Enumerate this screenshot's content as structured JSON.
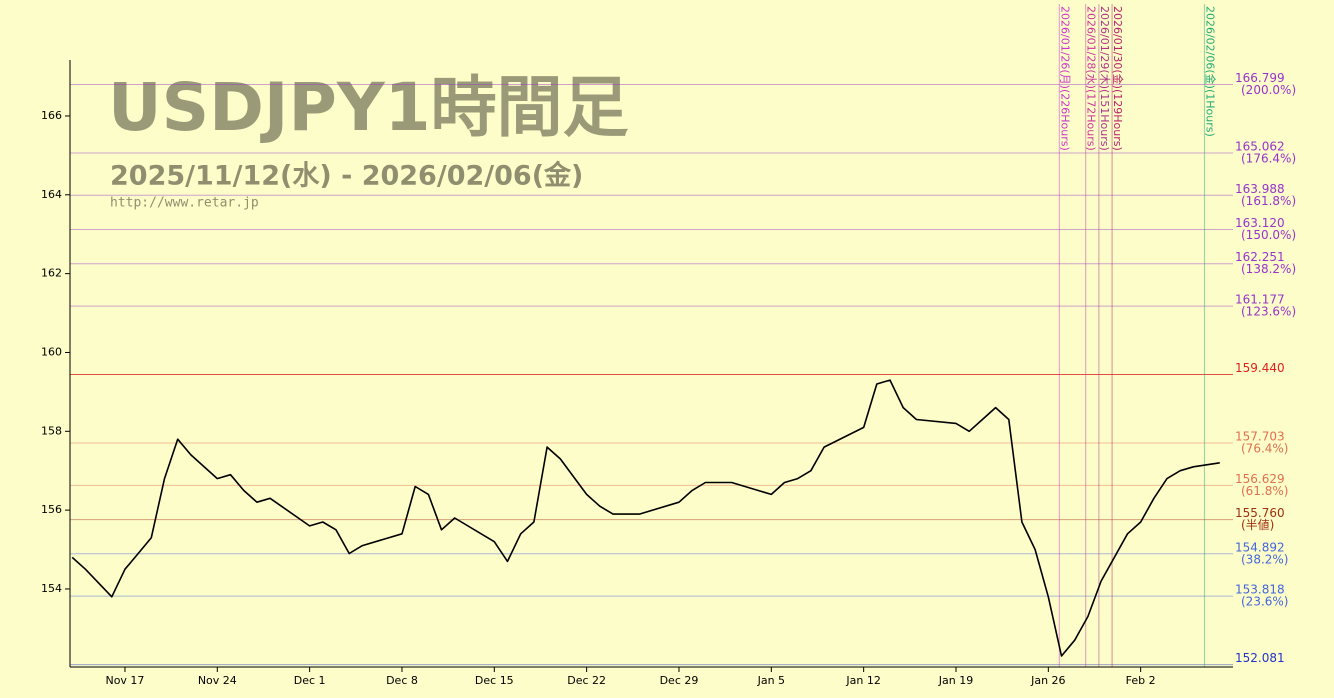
{
  "chart_data": {
    "type": "line",
    "title": "USDJPY1時間足",
    "subtitle": "2025/11/12(水) - 2026/02/06(金)",
    "source": "http://www.retar.jp",
    "x": [
      "2025/11/13",
      "2025/11/14",
      "2025/11/16",
      "2025/11/17",
      "2025/11/18",
      "2025/11/19",
      "2025/11/20",
      "2025/11/21",
      "2025/11/22",
      "2025/11/24",
      "2025/11/25",
      "2025/11/26",
      "2025/11/27",
      "2025/11/28",
      "2025/12/01",
      "2025/12/02",
      "2025/12/03",
      "2025/12/04",
      "2025/12/05",
      "2025/12/08",
      "2025/12/09",
      "2025/12/10",
      "2025/12/11",
      "2025/12/12",
      "2025/12/15",
      "2025/12/16",
      "2025/12/17",
      "2025/12/18",
      "2025/12/19",
      "2025/12/20",
      "2025/12/22",
      "2025/12/23",
      "2025/12/24",
      "2025/12/25",
      "2025/12/26",
      "2025/12/29",
      "2025/12/30",
      "2025/12/31",
      "2026/01/01",
      "2026/01/02",
      "2026/01/05",
      "2026/01/06",
      "2026/01/07",
      "2026/01/08",
      "2026/01/09",
      "2026/01/12",
      "2026/01/13",
      "2026/01/14",
      "2026/01/15",
      "2026/01/16",
      "2026/01/19",
      "2026/01/20",
      "2026/01/21",
      "2026/01/22",
      "2026/01/23",
      "2026/01/24",
      "2026/01/25",
      "2026/01/26",
      "2026/01/27",
      "2026/01/28",
      "2026/01/29",
      "2026/01/30",
      "2026/02/01",
      "2026/02/02",
      "2026/02/03",
      "2026/02/04",
      "2026/02/05",
      "2026/02/06",
      "2026/02/08"
    ],
    "series": [
      {
        "color": "#000000",
        "values": [
          154.8,
          154.5,
          153.8,
          154.5,
          154.9,
          155.3,
          156.8,
          157.8,
          157.4,
          156.8,
          156.9,
          156.5,
          156.2,
          156.3,
          155.6,
          155.7,
          155.5,
          154.9,
          155.1,
          155.4,
          156.6,
          156.4,
          155.5,
          155.8,
          155.2,
          154.7,
          155.4,
          155.7,
          157.6,
          157.3,
          156.4,
          156.1,
          155.9,
          155.9,
          155.9,
          156.2,
          156.5,
          156.7,
          156.7,
          156.7,
          156.4,
          156.7,
          156.8,
          157.0,
          157.6,
          158.1,
          159.2,
          159.3,
          158.6,
          158.3,
          158.2,
          158.0,
          158.3,
          158.6,
          158.3,
          155.7,
          155.0,
          153.8,
          152.3,
          152.7,
          153.3,
          154.2,
          155.4,
          155.7,
          156.3,
          156.8,
          157.0,
          157.1,
          157.2
        ]
      }
    ],
    "ylim": [
      152.02,
      167.42
    ],
    "yticks": [
      154,
      156,
      158,
      160,
      162,
      164,
      166
    ],
    "xlim": [
      "2025/11/12 20:00",
      "2026/02/09"
    ],
    "xticks": [
      {
        "value": "2025/11/17",
        "label": "Nov 17"
      },
      {
        "value": "2025/11/24",
        "label": "Nov 24"
      },
      {
        "value": "2025/12/01",
        "label": "Dec 1"
      },
      {
        "value": "2025/12/08",
        "label": "Dec 8"
      },
      {
        "value": "2025/12/15",
        "label": "Dec 15"
      },
      {
        "value": "2025/12/22",
        "label": "Dec 22"
      },
      {
        "value": "2025/12/29",
        "label": "Dec 29"
      },
      {
        "value": "2026/01/05",
        "label": "Jan 5"
      },
      {
        "value": "2026/01/12",
        "label": "Jan 12"
      },
      {
        "value": "2026/01/19",
        "label": "Jan 19"
      },
      {
        "value": "2026/01/26",
        "label": "Jan 26"
      },
      {
        "value": "2026/02/02",
        "label": "Feb 2"
      }
    ],
    "levels": [
      {
        "value": 166.799,
        "label": "166.799",
        "note": "(200.0%)",
        "color": "#9933cc"
      },
      {
        "value": 165.062,
        "label": "165.062",
        "note": "(176.4%)",
        "color": "#9933cc"
      },
      {
        "value": 163.988,
        "label": "163.988",
        "note": "(161.8%)",
        "color": "#9933cc"
      },
      {
        "value": 163.12,
        "label": "163.120",
        "note": "(150.0%)",
        "color": "#9933cc"
      },
      {
        "value": 162.251,
        "label": "162.251",
        "note": "(138.2%)",
        "color": "#9933cc"
      },
      {
        "value": 161.177,
        "label": "161.177",
        "note": "(123.6%)",
        "color": "#9933cc"
      },
      {
        "value": 159.44,
        "label": "159.440",
        "color": "#dd2222"
      },
      {
        "value": 157.703,
        "label": "157.703",
        "note": "(76.4%)",
        "color": "#e07050"
      },
      {
        "value": 156.629,
        "label": "156.629",
        "note": "(61.8%)",
        "color": "#e07050"
      },
      {
        "value": 155.76,
        "label": "155.760",
        "note": "(半値)",
        "color": "#a03010"
      },
      {
        "value": 154.892,
        "label": "154.892",
        "note": "(38.2%)",
        "color": "#4466dd"
      },
      {
        "value": 153.818,
        "label": "153.818",
        "note": "(23.6%)",
        "color": "#4466dd"
      },
      {
        "value": 152.081,
        "label": "152.081",
        "color": "#2233cc"
      }
    ],
    "time_markers": [
      {
        "label": "2026/01/26(月)(226Hours)",
        "color": "#cc33cc"
      },
      {
        "label": "2026/01/28(水)(172Hours)",
        "color": "#cc3399"
      },
      {
        "label": "2026/01/29(木)(151Hours)",
        "color": "#aa3388"
      },
      {
        "label": "2026/01/30(金)(129Hours)",
        "color": "#bb2266"
      },
      {
        "label": "2026/02/06(金)(1Hours)",
        "color": "#22aa77"
      }
    ]
  }
}
